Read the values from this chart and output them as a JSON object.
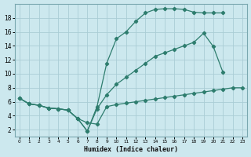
{
  "xlabel": "Humidex (Indice chaleur)",
  "bg_color": "#cce8ee",
  "line_color": "#2e7d6e",
  "grid_color": "#aacdd5",
  "line1_x": [
    0,
    1,
    2,
    3,
    4,
    5,
    6,
    7,
    8,
    9,
    10,
    11,
    12,
    13,
    14,
    15,
    16,
    17,
    18,
    19,
    20,
    21,
    22,
    23
  ],
  "line1_y": [
    6.5,
    5.7,
    5.5,
    5.1,
    5.0,
    4.8,
    3.6,
    3.0,
    2.8,
    5.3,
    5.6,
    5.8,
    6.0,
    6.2,
    6.4,
    6.6,
    6.8,
    7.0,
    7.2,
    7.4,
    7.6,
    7.8,
    8.0,
    8.0
  ],
  "line2_x": [
    0,
    1,
    2,
    3,
    4,
    5,
    6,
    7,
    8,
    9,
    10,
    11,
    12,
    13,
    14,
    15,
    16,
    17,
    18,
    19,
    20,
    21
  ],
  "line2_y": [
    6.5,
    5.7,
    5.5,
    5.1,
    5.0,
    4.8,
    3.6,
    1.8,
    5.3,
    11.5,
    15.0,
    16.0,
    17.5,
    18.7,
    19.2,
    19.3,
    19.3,
    19.2,
    18.8,
    18.7,
    18.7,
    18.7
  ],
  "line3_x": [
    0,
    1,
    2,
    3,
    4,
    5,
    6,
    7,
    8,
    9,
    10,
    11,
    12,
    13,
    14,
    15,
    16,
    17,
    18,
    19,
    20,
    21
  ],
  "line3_y": [
    6.5,
    5.7,
    5.5,
    5.1,
    5.0,
    4.8,
    3.6,
    1.8,
    5.0,
    7.0,
    8.5,
    9.5,
    10.5,
    11.5,
    12.5,
    13.0,
    13.5,
    14.0,
    14.5,
    15.8,
    13.9,
    10.2
  ],
  "xlim": [
    -0.5,
    23.5
  ],
  "ylim": [
    1,
    20
  ],
  "yticks": [
    2,
    4,
    6,
    8,
    10,
    12,
    14,
    16,
    18
  ],
  "yticklabels": [
    "2",
    "4",
    "6",
    "8",
    "10",
    "12",
    "14",
    "16",
    "18"
  ],
  "xticks": [
    0,
    1,
    2,
    3,
    4,
    5,
    6,
    7,
    8,
    9,
    10,
    11,
    12,
    13,
    14,
    15,
    16,
    17,
    18,
    19,
    20,
    21,
    22,
    23
  ],
  "xticklabels": [
    "0",
    "1",
    "2",
    "3",
    "4",
    "5",
    "6",
    "7",
    "8",
    "9",
    "10",
    "11",
    "12",
    "13",
    "14",
    "15",
    "16",
    "17",
    "18",
    "19",
    "20",
    "21",
    "22",
    "23"
  ]
}
